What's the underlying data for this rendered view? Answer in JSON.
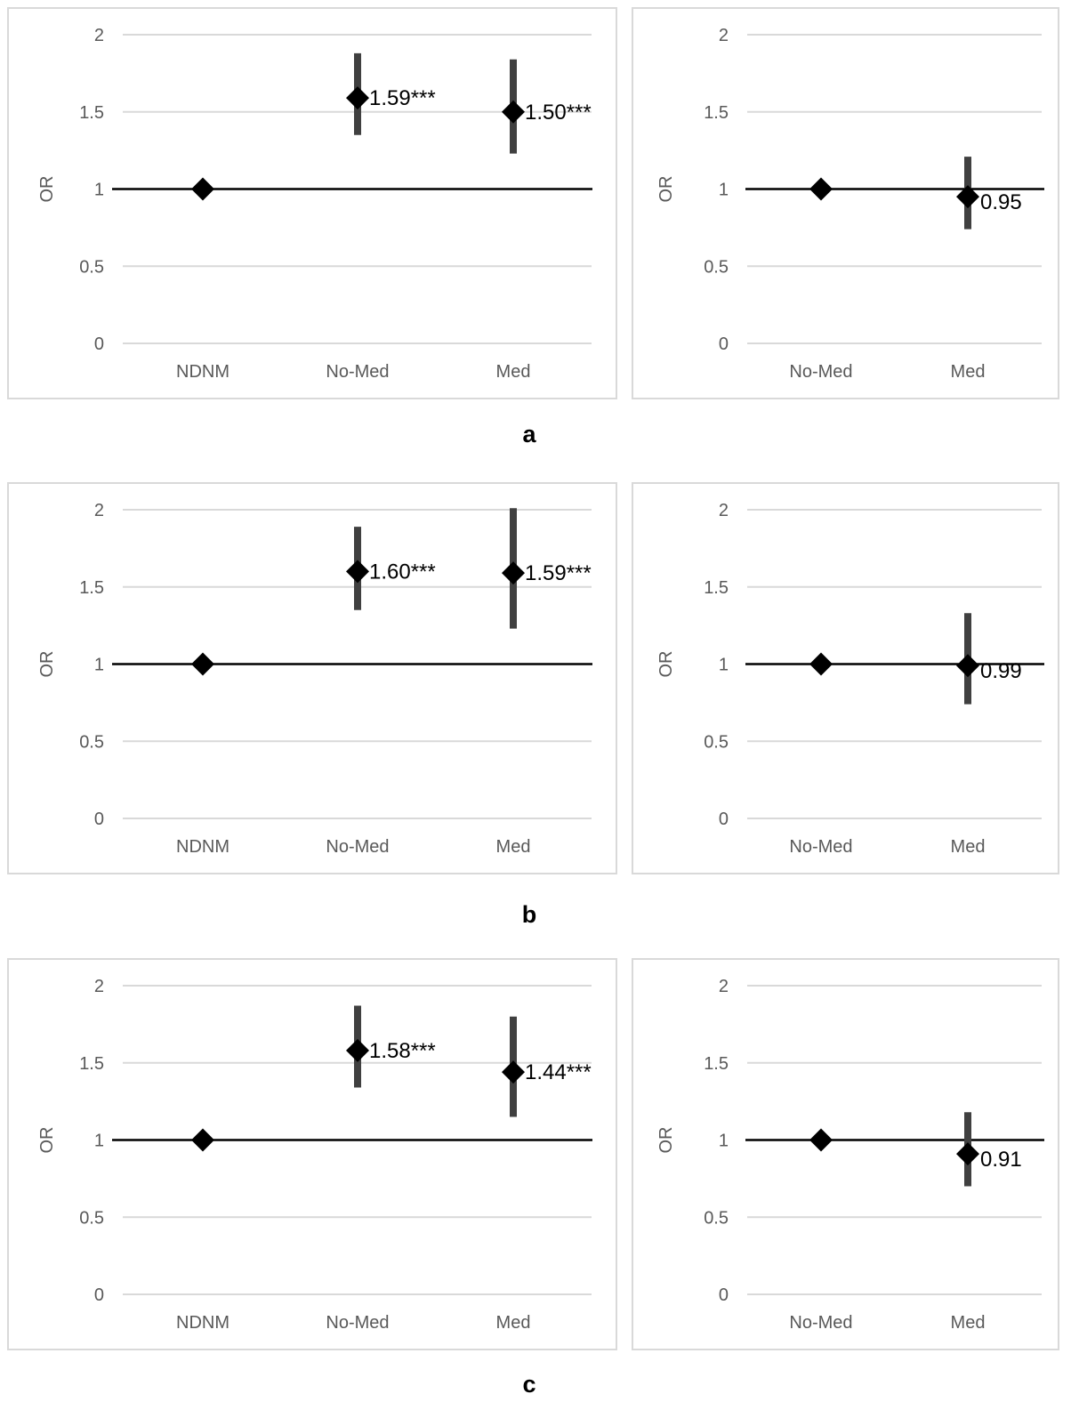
{
  "captions": [
    "a",
    "b",
    "c"
  ],
  "chart_data": [
    {
      "type": "scatter",
      "group": "a",
      "ylabel": "OR",
      "ylim": [
        0,
        2
      ],
      "yticks": [
        "0",
        "0.5",
        "1",
        "1.5",
        "2"
      ],
      "categories": [
        "NDNM",
        "No-Med",
        "Med"
      ],
      "values": [
        1.0,
        1.59,
        1.5
      ],
      "ci_low": [
        null,
        1.35,
        1.23
      ],
      "ci_high": [
        null,
        1.88,
        1.84
      ],
      "labels": [
        "",
        "1.59***",
        "1.50***"
      ],
      "reference": 1
    },
    {
      "type": "scatter",
      "group": "a",
      "ylabel": "OR",
      "ylim": [
        0,
        2
      ],
      "yticks": [
        "0",
        "0.5",
        "1",
        "1.5",
        "2"
      ],
      "categories": [
        "No-Med",
        "Med"
      ],
      "values": [
        1.0,
        0.95
      ],
      "ci_low": [
        null,
        0.74
      ],
      "ci_high": [
        null,
        1.21
      ],
      "labels": [
        "",
        "0.95"
      ],
      "reference": 1
    },
    {
      "type": "scatter",
      "group": "b",
      "ylabel": "OR",
      "ylim": [
        0,
        2
      ],
      "yticks": [
        "0",
        "0.5",
        "1",
        "1.5",
        "2"
      ],
      "categories": [
        "NDNM",
        "No-Med",
        "Med"
      ],
      "values": [
        1.0,
        1.6,
        1.59
      ],
      "ci_low": [
        null,
        1.35,
        1.23
      ],
      "ci_high": [
        null,
        1.89,
        2.01
      ],
      "labels": [
        "",
        "1.60***",
        "1.59***"
      ],
      "reference": 1
    },
    {
      "type": "scatter",
      "group": "b",
      "ylabel": "OR",
      "ylim": [
        0,
        2
      ],
      "yticks": [
        "0",
        "0.5",
        "1",
        "1.5",
        "2"
      ],
      "categories": [
        "No-Med",
        "Med"
      ],
      "values": [
        1.0,
        0.99
      ],
      "ci_low": [
        null,
        0.74
      ],
      "ci_high": [
        null,
        1.33
      ],
      "labels": [
        "",
        "0.99"
      ],
      "reference": 1
    },
    {
      "type": "scatter",
      "group": "c",
      "ylabel": "OR",
      "ylim": [
        0,
        2
      ],
      "yticks": [
        "0",
        "0.5",
        "1",
        "1.5",
        "2"
      ],
      "categories": [
        "NDNM",
        "No-Med",
        "Med"
      ],
      "values": [
        1.0,
        1.58,
        1.44
      ],
      "ci_low": [
        null,
        1.34,
        1.15
      ],
      "ci_high": [
        null,
        1.87,
        1.8
      ],
      "labels": [
        "",
        "1.58***",
        "1.44***"
      ],
      "reference": 1
    },
    {
      "type": "scatter",
      "group": "c",
      "ylabel": "OR",
      "ylim": [
        0,
        2
      ],
      "yticks": [
        "0",
        "0.5",
        "1",
        "1.5",
        "2"
      ],
      "categories": [
        "No-Med",
        "Med"
      ],
      "values": [
        1.0,
        0.91
      ],
      "ci_low": [
        null,
        0.7
      ],
      "ci_high": [
        null,
        1.18
      ],
      "labels": [
        "",
        "0.91"
      ],
      "reference": 1
    }
  ]
}
